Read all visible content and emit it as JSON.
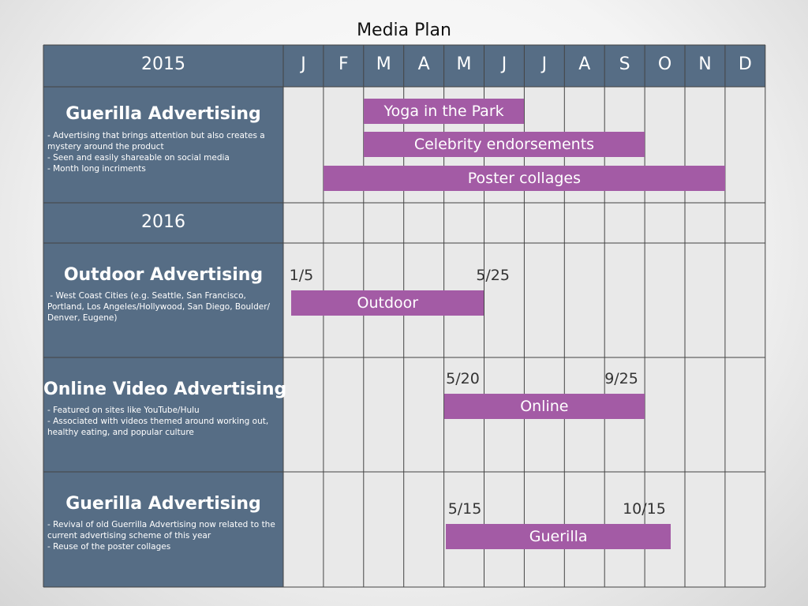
{
  "title": "Media Plan",
  "chart_data": {
    "type": "table",
    "year_2015": "2015",
    "year_2016": "2016",
    "months": [
      "J",
      "F",
      "M",
      "A",
      "M",
      "J",
      "J",
      "A",
      "S",
      "O",
      "N",
      "D"
    ],
    "rows": [
      {
        "title": "Guerilla Advertising",
        "description": [
          "- Advertising that brings attention but also creates a mystery around the product",
          "- Seen and easily shareable on social media",
          "- Month long incriments"
        ],
        "bars": [
          {
            "label": "Yoga in the Park",
            "start": 2,
            "end": 6
          },
          {
            "label": "Celebrity endorsements",
            "start": 2,
            "end": 9
          },
          {
            "label": "Poster collages",
            "start": 1,
            "end": 11
          }
        ],
        "dates": []
      },
      {
        "title": "Outdoor Advertising",
        "description": [
          " - West Coast Cities (e.g. Seattle, San Francisco, Portland, Los Angeles/Hollywood, San Diego, Boulder/ Denver, Eugene)"
        ],
        "bars": [
          {
            "label": "Outdoor",
            "start": 0.2,
            "end": 5
          }
        ],
        "dates": [
          {
            "text": "1/5",
            "pos": 0.15
          },
          {
            "text": "5/25",
            "pos": 4.8
          }
        ]
      },
      {
        "title": "Online Video Advertising",
        "description": [
          "- Featured on sites like YouTube/Hulu",
          "- Associated with videos themed around working out, healthy eating, and popular culture"
        ],
        "bars": [
          {
            "label": "Online",
            "start": 4,
            "end": 9
          }
        ],
        "dates": [
          {
            "text": "5/20",
            "pos": 4.05
          },
          {
            "text": "9/25",
            "pos": 8.0
          }
        ]
      },
      {
        "title": "Guerilla Advertising",
        "description": [
          "- Revival of old Guerrilla Advertising now related to the current advertising scheme of this year",
          "- Reuse of the poster collages"
        ],
        "bars": [
          {
            "label": "Guerilla",
            "start": 4.05,
            "end": 9.65
          }
        ],
        "dates": [
          {
            "text": "5/15",
            "pos": 4.1
          },
          {
            "text": "10/15",
            "pos": 8.45
          }
        ]
      }
    ],
    "colors": {
      "header_bg": "#566d85",
      "bar": "#a35ba5",
      "grid_bg": "#e9e9e9",
      "grid_line": "#444444"
    }
  }
}
